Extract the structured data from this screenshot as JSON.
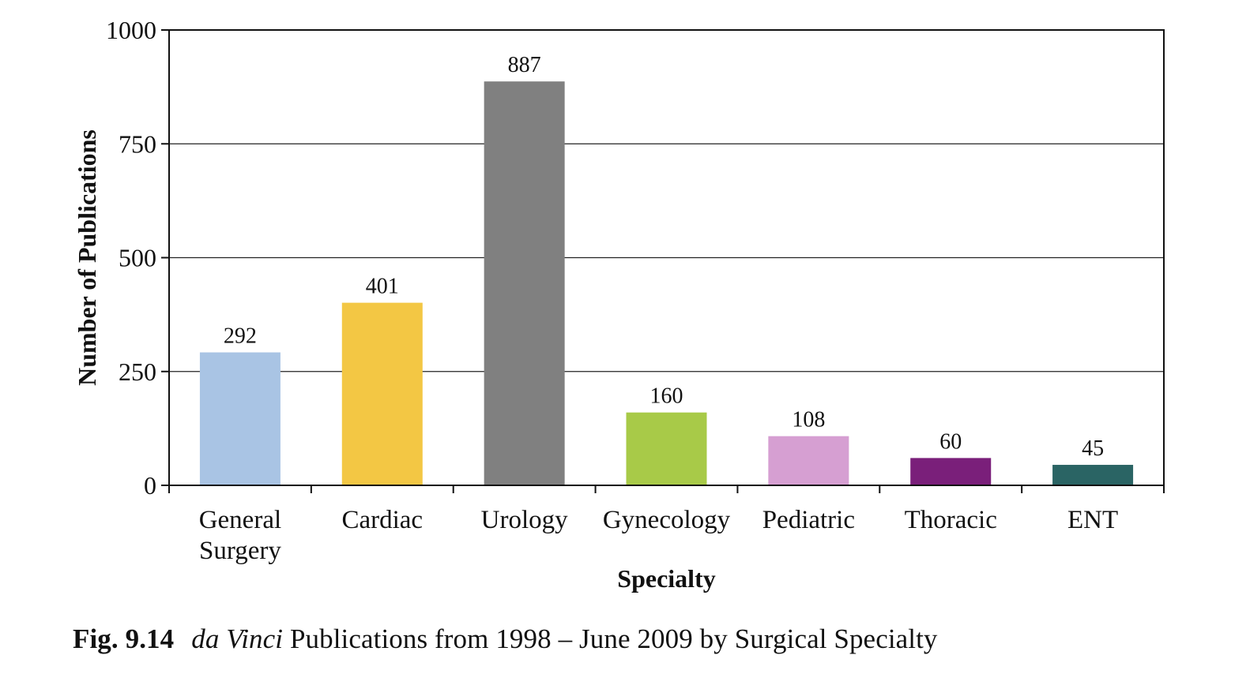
{
  "chart_data": {
    "type": "bar",
    "categories": [
      [
        "General",
        "Surgery"
      ],
      [
        "Cardiac"
      ],
      [
        "Urology"
      ],
      [
        "Gynecology"
      ],
      [
        "Pediatric"
      ],
      [
        "Thoracic"
      ],
      [
        "ENT"
      ]
    ],
    "values": [
      292,
      401,
      887,
      160,
      108,
      60,
      45
    ],
    "data_labels": [
      "292",
      "401",
      "887",
      "160",
      "108",
      "60",
      "45"
    ],
    "bar_colors": [
      "#a9c4e4",
      "#f3c744",
      "#808080",
      "#a8ca48",
      "#d69fd2",
      "#7a1f7a",
      "#2a6464"
    ],
    "ylim": [
      0,
      1000
    ],
    "yticks": [
      0,
      250,
      500,
      750,
      1000
    ],
    "ytick_labels": [
      "0",
      "250",
      "500",
      "750",
      "1000"
    ],
    "ylabel": "Number of Publications",
    "xlabel": "Specialty",
    "grid": true,
    "legend": "none"
  },
  "caption": {
    "fig_label": "Fig. 9.14",
    "italic_part": "da Vinci",
    "rest": " Publications from 1998 – June 2009 by Surgical Specialty"
  }
}
